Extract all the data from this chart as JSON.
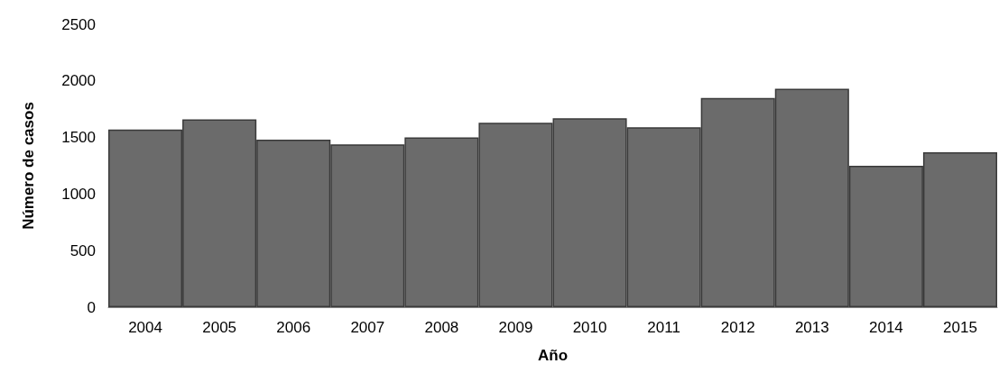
{
  "chart_data": {
    "type": "bar",
    "xlabel": "Año",
    "ylabel": "Número de casos",
    "categories": [
      "2004",
      "2005",
      "2006",
      "2007",
      "2008",
      "2009",
      "2010",
      "2011",
      "2012",
      "2013",
      "2014",
      "2015"
    ],
    "values": [
      1570,
      1660,
      1480,
      1440,
      1500,
      1630,
      1670,
      1590,
      1850,
      1930,
      1250,
      1370
    ],
    "color": "#6b6b6b",
    "ylim": [
      0,
      2500
    ],
    "yticks": [
      0,
      500,
      1000,
      1500,
      2000,
      2500
    ],
    "grid": false
  }
}
